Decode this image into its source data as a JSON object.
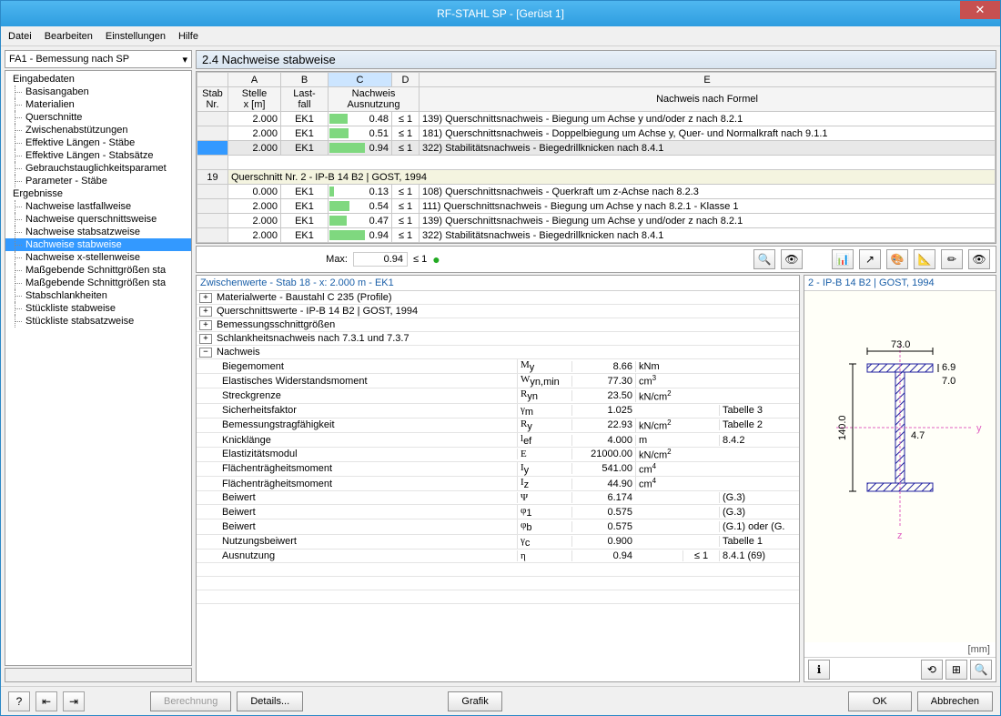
{
  "window": {
    "title": "RF-STAHL SP - [Gerüst 1]"
  },
  "menu": [
    "Datei",
    "Bearbeiten",
    "Einstellungen",
    "Hilfe"
  ],
  "sidebar": {
    "dropdown": "FA1 - Bemessung nach SP",
    "groups": [
      {
        "label": "Eingabedaten",
        "children": [
          "Basisangaben",
          "Materialien",
          "Querschnitte",
          "Zwischenabstützungen",
          "Effektive Längen - Stäbe",
          "Effektive Längen - Stabsätze",
          "Gebrauchstauglichkeitsparamet",
          "Parameter - Stäbe"
        ]
      },
      {
        "label": "Ergebnisse",
        "children": [
          "Nachweise lastfallweise",
          "Nachweise querschnittsweise",
          "Nachweise stabsatzweise",
          "Nachweise stabweise",
          "Nachweise x-stellenweise",
          "Maßgebende Schnittgrößen sta",
          "Maßgebende Schnittgrößen sta",
          "Stabschlankheiten",
          "Stückliste stabweise",
          "Stückliste stabsatzweise"
        ]
      }
    ],
    "selected": "Nachweise stabweise"
  },
  "panel_title": "2.4 Nachweise stabweise",
  "grid": {
    "col_letters": [
      "A",
      "B",
      "C",
      "D",
      "E"
    ],
    "headers": {
      "stab": "Stab\nNr.",
      "stelle": "Stelle\nx [m]",
      "last": "Last-\nfall",
      "nachweis": "Nachweis\nAusnutzung",
      "formel": "Nachweis nach Formel"
    },
    "rows1": [
      {
        "x": "2.000",
        "lf": "EK1",
        "util": 0.48,
        "cmp": "≤ 1",
        "desc": "139) Querschnittsnachweis - Biegung um Achse y und/oder z nach 8.2.1"
      },
      {
        "x": "2.000",
        "lf": "EK1",
        "util": 0.51,
        "cmp": "≤ 1",
        "desc": "181) Querschnittsnachweis - Doppelbiegung um Achse y, Quer- und Normalkraft nach 9.1.1"
      },
      {
        "x": "2.000",
        "lf": "EK1",
        "util": 0.94,
        "cmp": "≤ 1",
        "desc": "322) Stabilitätsnachweis -  Biegedrillknicken nach 8.4.1",
        "selected": true
      }
    ],
    "section": {
      "nr": "19",
      "label": "Querschnitt Nr.  2 - IP-B 14 B2 | GOST, 1994"
    },
    "rows2": [
      {
        "x": "0.000",
        "lf": "EK1",
        "util": 0.13,
        "cmp": "≤ 1",
        "desc": "108) Querschnittsnachweis - Querkraft um z-Achse nach 8.2.3"
      },
      {
        "x": "2.000",
        "lf": "EK1",
        "util": 0.54,
        "cmp": "≤ 1",
        "desc": "111) Querschnittsnachweis - Biegung um Achse y nach 8.2.1 - Klasse 1"
      },
      {
        "x": "2.000",
        "lf": "EK1",
        "util": 0.47,
        "cmp": "≤ 1",
        "desc": "139) Querschnittsnachweis - Biegung um Achse y und/oder z nach 8.2.1"
      },
      {
        "x": "2.000",
        "lf": "EK1",
        "util": 0.94,
        "cmp": "≤ 1",
        "desc": "322) Stabilitätsnachweis -  Biegedrillknicken nach 8.4.1"
      }
    ]
  },
  "summary": {
    "label": "Max:",
    "value": "0.94",
    "cmp": "≤ 1"
  },
  "detail": {
    "header": "Zwischenwerte - Stab 18 - x: 2.000 m - EK1",
    "exp_rows": [
      "Materialwerte - Baustahl C 235 (Profile)",
      "Querschnittswerte  - IP-B 14 B2 | GOST, 1994",
      "Bemessungsschnittgrößen",
      "Schlankheitsnachweis nach 7.3.1 und 7.3.7"
    ],
    "nachweis_label": "Nachweis",
    "props": [
      {
        "lbl": "Biegemoment",
        "sym": "M<sub>y</sub>",
        "val": "8.66",
        "unit": "kNm",
        "flag": "",
        "ref": ""
      },
      {
        "lbl": "Elastisches Widerstandsmoment",
        "sym": "W<sub>yn,min</sub>",
        "val": "77.30",
        "unit": "cm<sup>3</sup>",
        "flag": "",
        "ref": ""
      },
      {
        "lbl": "Streckgrenze",
        "sym": "R<sub>yn</sub>",
        "val": "23.50",
        "unit": "kN/cm<sup>2</sup>",
        "flag": "",
        "ref": ""
      },
      {
        "lbl": "Sicherheitsfaktor",
        "sym": "γ<sub>m</sub>",
        "val": "1.025",
        "unit": "",
        "flag": "",
        "ref": "Tabelle 3"
      },
      {
        "lbl": "Bemessungstragfähigkeit",
        "sym": "R<sub>y</sub>",
        "val": "22.93",
        "unit": "kN/cm<sup>2</sup>",
        "flag": "",
        "ref": "Tabelle 2"
      },
      {
        "lbl": "Knicklänge",
        "sym": "l<sub>ef</sub>",
        "val": "4.000",
        "unit": "m",
        "flag": "",
        "ref": "8.4.2"
      },
      {
        "lbl": "Elastizitätsmodul",
        "sym": "E",
        "val": "21000.00",
        "unit": "kN/cm<sup>2</sup>",
        "flag": "",
        "ref": ""
      },
      {
        "lbl": "Flächenträgheitsmoment",
        "sym": "I<sub>y</sub>",
        "val": "541.00",
        "unit": "cm<sup>4</sup>",
        "flag": "",
        "ref": ""
      },
      {
        "lbl": "Flächenträgheitsmoment",
        "sym": "I<sub>z</sub>",
        "val": "44.90",
        "unit": "cm<sup>4</sup>",
        "flag": "",
        "ref": ""
      },
      {
        "lbl": "Beiwert",
        "sym": "Ψ",
        "val": "6.174",
        "unit": "",
        "flag": "",
        "ref": "(G.3)"
      },
      {
        "lbl": "Beiwert",
        "sym": "φ<sub>1</sub>",
        "val": "0.575",
        "unit": "",
        "flag": "",
        "ref": "(G.3)"
      },
      {
        "lbl": "Beiwert",
        "sym": "φ<sub>b</sub>",
        "val": "0.575",
        "unit": "",
        "flag": "",
        "ref": "(G.1) oder (G."
      },
      {
        "lbl": "Nutzungsbeiwert",
        "sym": "γ<sub>c</sub>",
        "val": "0.900",
        "unit": "",
        "flag": "",
        "ref": "Tabelle 1"
      },
      {
        "lbl": "Ausnutzung",
        "sym": "η",
        "val": "0.94",
        "unit": "",
        "flag": "≤ 1",
        "ref": "8.4.1 (69)"
      }
    ]
  },
  "profile": {
    "header": "2 - IP-B 14 B2 | GOST, 1994",
    "unit_label": "[mm]",
    "dims": {
      "width": "73.0",
      "flange_t": "6.9",
      "web_t": "7.0",
      "height": "140.0",
      "other": "4.7"
    },
    "colors": {
      "section_fill": "#4040c8",
      "hatch": "#2020a0",
      "axis_y": "#e060c0",
      "axis_z": "#e060c0"
    }
  },
  "footer": {
    "berechnung": "Berechnung",
    "details": "Details...",
    "grafik": "Grafik",
    "ok": "OK",
    "abbrechen": "Abbrechen"
  }
}
